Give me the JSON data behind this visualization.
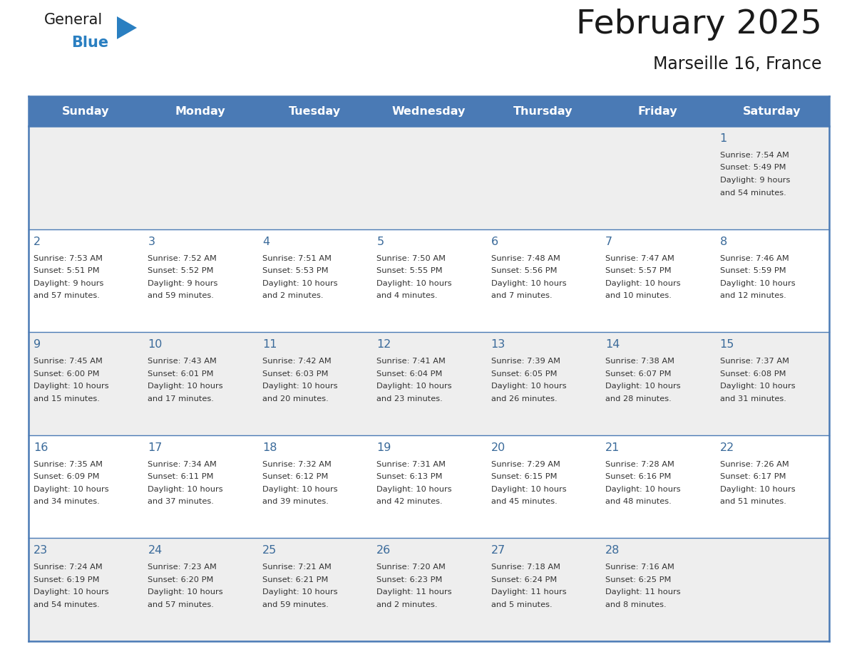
{
  "title": "February 2025",
  "subtitle": "Marseille 16, France",
  "days_of_week": [
    "Sunday",
    "Monday",
    "Tuesday",
    "Wednesday",
    "Thursday",
    "Friday",
    "Saturday"
  ],
  "header_bg": "#4a7ab5",
  "header_text": "#ffffff",
  "cell_bg_odd": "#eeeeee",
  "cell_bg_even": "#ffffff",
  "day_number_color": "#3a6a9a",
  "cell_text_color": "#333333",
  "border_color": "#4a7ab5",
  "calendar_data": [
    {
      "day": 1,
      "col": 6,
      "row": 0,
      "sunrise": "7:54 AM",
      "sunset": "5:49 PM",
      "daylight_hours": 9,
      "daylight_minutes": 54
    },
    {
      "day": 2,
      "col": 0,
      "row": 1,
      "sunrise": "7:53 AM",
      "sunset": "5:51 PM",
      "daylight_hours": 9,
      "daylight_minutes": 57
    },
    {
      "day": 3,
      "col": 1,
      "row": 1,
      "sunrise": "7:52 AM",
      "sunset": "5:52 PM",
      "daylight_hours": 9,
      "daylight_minutes": 59
    },
    {
      "day": 4,
      "col": 2,
      "row": 1,
      "sunrise": "7:51 AM",
      "sunset": "5:53 PM",
      "daylight_hours": 10,
      "daylight_minutes": 2
    },
    {
      "day": 5,
      "col": 3,
      "row": 1,
      "sunrise": "7:50 AM",
      "sunset": "5:55 PM",
      "daylight_hours": 10,
      "daylight_minutes": 4
    },
    {
      "day": 6,
      "col": 4,
      "row": 1,
      "sunrise": "7:48 AM",
      "sunset": "5:56 PM",
      "daylight_hours": 10,
      "daylight_minutes": 7
    },
    {
      "day": 7,
      "col": 5,
      "row": 1,
      "sunrise": "7:47 AM",
      "sunset": "5:57 PM",
      "daylight_hours": 10,
      "daylight_minutes": 10
    },
    {
      "day": 8,
      "col": 6,
      "row": 1,
      "sunrise": "7:46 AM",
      "sunset": "5:59 PM",
      "daylight_hours": 10,
      "daylight_minutes": 12
    },
    {
      "day": 9,
      "col": 0,
      "row": 2,
      "sunrise": "7:45 AM",
      "sunset": "6:00 PM",
      "daylight_hours": 10,
      "daylight_minutes": 15
    },
    {
      "day": 10,
      "col": 1,
      "row": 2,
      "sunrise": "7:43 AM",
      "sunset": "6:01 PM",
      "daylight_hours": 10,
      "daylight_minutes": 17
    },
    {
      "day": 11,
      "col": 2,
      "row": 2,
      "sunrise": "7:42 AM",
      "sunset": "6:03 PM",
      "daylight_hours": 10,
      "daylight_minutes": 20
    },
    {
      "day": 12,
      "col": 3,
      "row": 2,
      "sunrise": "7:41 AM",
      "sunset": "6:04 PM",
      "daylight_hours": 10,
      "daylight_minutes": 23
    },
    {
      "day": 13,
      "col": 4,
      "row": 2,
      "sunrise": "7:39 AM",
      "sunset": "6:05 PM",
      "daylight_hours": 10,
      "daylight_minutes": 26
    },
    {
      "day": 14,
      "col": 5,
      "row": 2,
      "sunrise": "7:38 AM",
      "sunset": "6:07 PM",
      "daylight_hours": 10,
      "daylight_minutes": 28
    },
    {
      "day": 15,
      "col": 6,
      "row": 2,
      "sunrise": "7:37 AM",
      "sunset": "6:08 PM",
      "daylight_hours": 10,
      "daylight_minutes": 31
    },
    {
      "day": 16,
      "col": 0,
      "row": 3,
      "sunrise": "7:35 AM",
      "sunset": "6:09 PM",
      "daylight_hours": 10,
      "daylight_minutes": 34
    },
    {
      "day": 17,
      "col": 1,
      "row": 3,
      "sunrise": "7:34 AM",
      "sunset": "6:11 PM",
      "daylight_hours": 10,
      "daylight_minutes": 37
    },
    {
      "day": 18,
      "col": 2,
      "row": 3,
      "sunrise": "7:32 AM",
      "sunset": "6:12 PM",
      "daylight_hours": 10,
      "daylight_minutes": 39
    },
    {
      "day": 19,
      "col": 3,
      "row": 3,
      "sunrise": "7:31 AM",
      "sunset": "6:13 PM",
      "daylight_hours": 10,
      "daylight_minutes": 42
    },
    {
      "day": 20,
      "col": 4,
      "row": 3,
      "sunrise": "7:29 AM",
      "sunset": "6:15 PM",
      "daylight_hours": 10,
      "daylight_minutes": 45
    },
    {
      "day": 21,
      "col": 5,
      "row": 3,
      "sunrise": "7:28 AM",
      "sunset": "6:16 PM",
      "daylight_hours": 10,
      "daylight_minutes": 48
    },
    {
      "day": 22,
      "col": 6,
      "row": 3,
      "sunrise": "7:26 AM",
      "sunset": "6:17 PM",
      "daylight_hours": 10,
      "daylight_minutes": 51
    },
    {
      "day": 23,
      "col": 0,
      "row": 4,
      "sunrise": "7:24 AM",
      "sunset": "6:19 PM",
      "daylight_hours": 10,
      "daylight_minutes": 54
    },
    {
      "day": 24,
      "col": 1,
      "row": 4,
      "sunrise": "7:23 AM",
      "sunset": "6:20 PM",
      "daylight_hours": 10,
      "daylight_minutes": 57
    },
    {
      "day": 25,
      "col": 2,
      "row": 4,
      "sunrise": "7:21 AM",
      "sunset": "6:21 PM",
      "daylight_hours": 10,
      "daylight_minutes": 59
    },
    {
      "day": 26,
      "col": 3,
      "row": 4,
      "sunrise": "7:20 AM",
      "sunset": "6:23 PM",
      "daylight_hours": 11,
      "daylight_minutes": 2
    },
    {
      "day": 27,
      "col": 4,
      "row": 4,
      "sunrise": "7:18 AM",
      "sunset": "6:24 PM",
      "daylight_hours": 11,
      "daylight_minutes": 5
    },
    {
      "day": 28,
      "col": 5,
      "row": 4,
      "sunrise": "7:16 AM",
      "sunset": "6:25 PM",
      "daylight_hours": 11,
      "daylight_minutes": 8
    }
  ],
  "logo_text_general": "General",
  "logo_text_blue": "Blue",
  "logo_color_general": "#1a1a1a",
  "logo_color_blue": "#2a7fc1",
  "logo_triangle_color": "#2a7fc1",
  "figwidth": 11.88,
  "figheight": 9.18,
  "dpi": 100
}
